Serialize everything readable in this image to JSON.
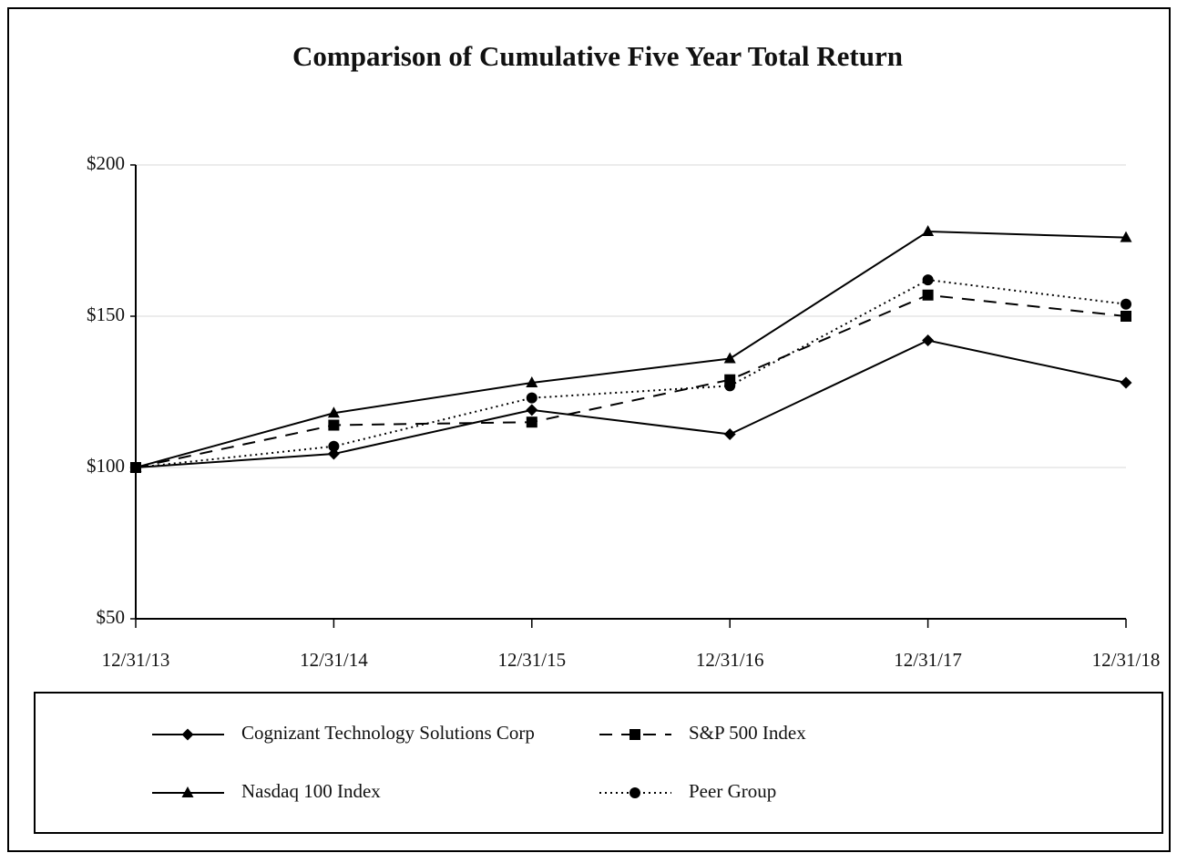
{
  "chart_data": {
    "type": "line",
    "title": "Comparison of Cumulative Five Year Total Return",
    "categories": [
      "12/31/13",
      "12/31/14",
      "12/31/15",
      "12/31/16",
      "12/31/17",
      "12/31/18"
    ],
    "series": [
      {
        "name": "Cognizant Technology Solutions Corp",
        "color": "#000000",
        "marker": "diamond",
        "line_style": "solid",
        "values": [
          100,
          104.5,
          119,
          111,
          142,
          128
        ]
      },
      {
        "name": "S&P 500 Index",
        "color": "#000000",
        "marker": "square",
        "line_style": "dashed",
        "values": [
          100,
          114,
          115,
          129,
          157,
          150
        ]
      },
      {
        "name": "Nasdaq 100 Index",
        "color": "#000000",
        "marker": "triangle",
        "line_style": "solid",
        "values": [
          100,
          118,
          128,
          136,
          178,
          176
        ]
      },
      {
        "name": "Peer Group",
        "color": "#000000",
        "marker": "circle",
        "line_style": "dotted",
        "values": [
          100,
          107,
          123,
          127,
          162,
          154
        ]
      }
    ],
    "ylim": [
      50,
      200
    ],
    "yticks": [
      {
        "value": 50,
        "label": "$50"
      },
      {
        "value": 100,
        "label": "$100"
      },
      {
        "value": 150,
        "label": "$150"
      },
      {
        "value": 200,
        "label": "$200"
      }
    ],
    "grid": true,
    "legend": "bottom"
  }
}
